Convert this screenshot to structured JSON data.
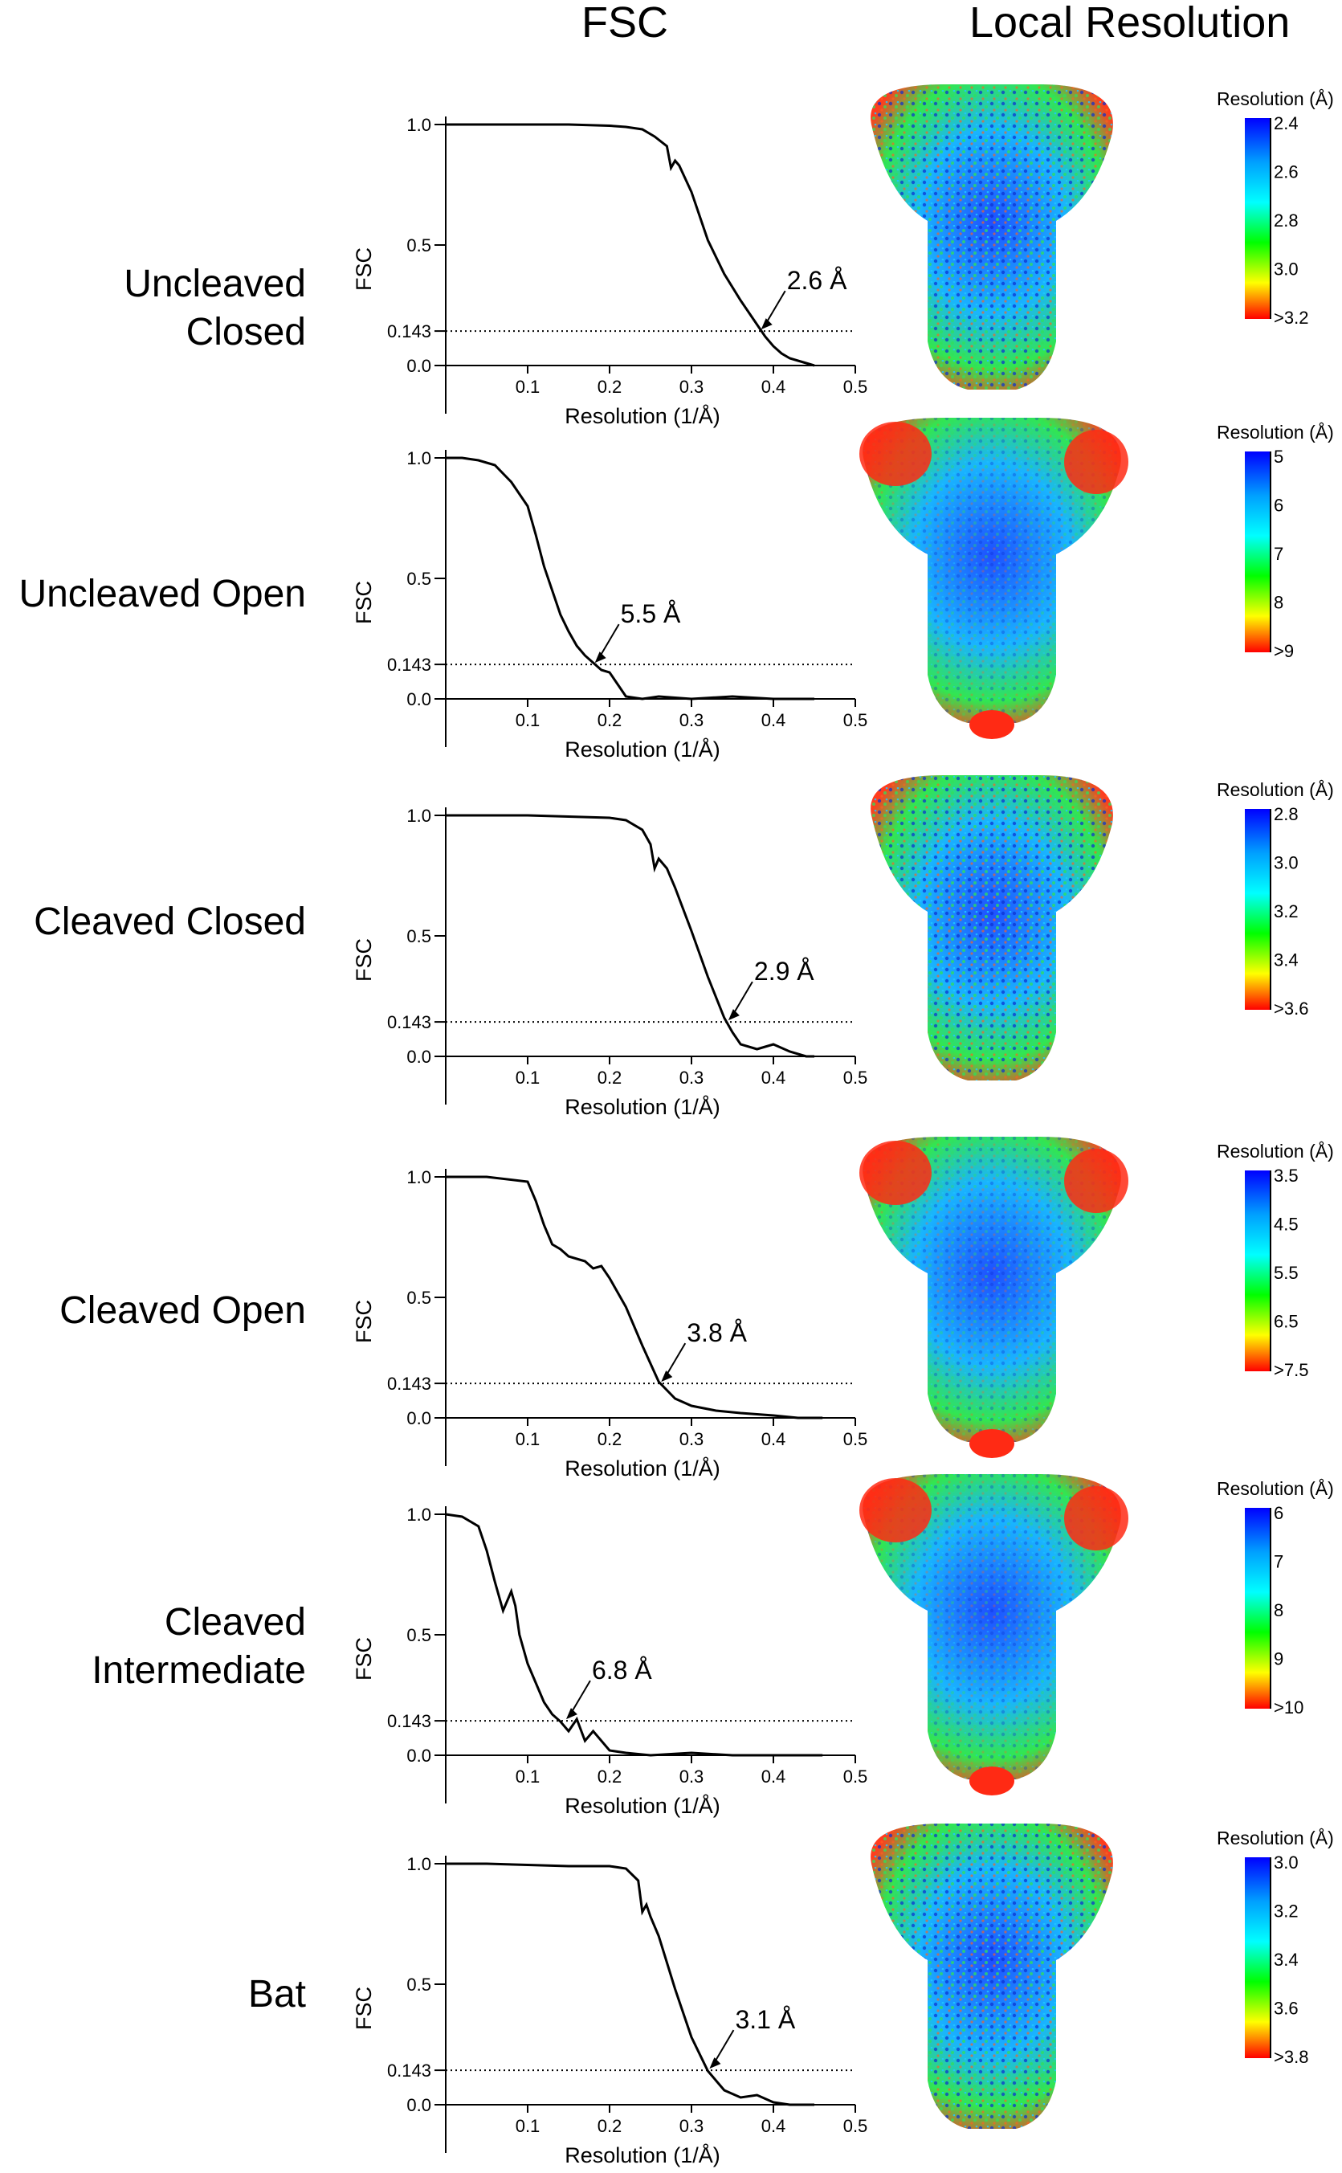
{
  "headers": {
    "fsc": "FSC",
    "local_resolution": "Local Resolution"
  },
  "colors": {
    "curve": "#000000",
    "scale": [
      "#0000ff",
      "#00a0ff",
      "#00ffff",
      "#00ff00",
      "#ffff00",
      "#ff0000"
    ]
  },
  "chart_data": [
    {
      "type": "line",
      "row_label": "Uncleaved Closed",
      "xlabel": "Resolution (1/Å)",
      "ylabel": "FSC",
      "xlim": [
        0,
        0.5
      ],
      "ylim": [
        0,
        1.0
      ],
      "xticks": [
        "0.1",
        "0.2",
        "0.3",
        "0.4",
        "0.5"
      ],
      "yticks": [
        "1.0",
        "0.5",
        "0.143",
        "0.0"
      ],
      "threshold": 0.143,
      "annotation": "2.6 Å",
      "annotation_x": 0.385,
      "series": [
        {
          "x": [
            0,
            0.05,
            0.1,
            0.15,
            0.2,
            0.22,
            0.24,
            0.255,
            0.27,
            0.275,
            0.28,
            0.285,
            0.3,
            0.32,
            0.34,
            0.36,
            0.38,
            0.39,
            0.4,
            0.41,
            0.42,
            0.43,
            0.44,
            0.45
          ],
          "y": [
            1.0,
            1.0,
            1.0,
            1.0,
            0.995,
            0.99,
            0.98,
            0.95,
            0.91,
            0.82,
            0.85,
            0.83,
            0.72,
            0.52,
            0.38,
            0.27,
            0.17,
            0.12,
            0.08,
            0.05,
            0.03,
            0.02,
            0.01,
            0.0
          ]
        }
      ],
      "color_scale": {
        "title": "Resolution (Å)",
        "ticks": [
          "2.4",
          "2.6",
          "2.8",
          "3.0",
          ">3.2"
        ]
      }
    },
    {
      "type": "line",
      "row_label": "Uncleaved Open",
      "xlabel": "Resolution (1/Å)",
      "ylabel": "FSC",
      "xlim": [
        0,
        0.5
      ],
      "ylim": [
        0,
        1.0
      ],
      "xticks": [
        "0.1",
        "0.2",
        "0.3",
        "0.4",
        "0.5"
      ],
      "yticks": [
        "1.0",
        "0.5",
        "0.143",
        "0.0"
      ],
      "threshold": 0.143,
      "annotation": "5.5 Å",
      "annotation_x": 0.182,
      "series": [
        {
          "x": [
            0,
            0.02,
            0.04,
            0.06,
            0.08,
            0.1,
            0.11,
            0.12,
            0.13,
            0.14,
            0.15,
            0.16,
            0.17,
            0.18,
            0.19,
            0.2,
            0.21,
            0.22,
            0.24,
            0.26,
            0.3,
            0.35,
            0.4,
            0.45
          ],
          "y": [
            1.0,
            1.0,
            0.99,
            0.97,
            0.9,
            0.8,
            0.68,
            0.55,
            0.45,
            0.35,
            0.28,
            0.22,
            0.18,
            0.15,
            0.12,
            0.11,
            0.06,
            0.01,
            0.0,
            0.01,
            0.0,
            0.01,
            0.0,
            0.0
          ]
        }
      ],
      "color_scale": {
        "title": "Resolution (Å)",
        "ticks": [
          "5",
          "6",
          "7",
          "8",
          ">9"
        ]
      }
    },
    {
      "type": "line",
      "row_label": "Cleaved Closed",
      "xlabel": "Resolution (1/Å)",
      "ylabel": "FSC",
      "xlim": [
        0,
        0.5
      ],
      "ylim": [
        0,
        1.0
      ],
      "xticks": [
        "0.1",
        "0.2",
        "0.3",
        "0.4",
        "0.5"
      ],
      "yticks": [
        "1.0",
        "0.5",
        "0.143",
        "0.0"
      ],
      "threshold": 0.143,
      "annotation": "2.9 Å",
      "annotation_x": 0.345,
      "series": [
        {
          "x": [
            0,
            0.05,
            0.1,
            0.15,
            0.2,
            0.22,
            0.24,
            0.25,
            0.255,
            0.26,
            0.27,
            0.28,
            0.3,
            0.32,
            0.34,
            0.35,
            0.36,
            0.38,
            0.4,
            0.42,
            0.44,
            0.45
          ],
          "y": [
            1.0,
            1.0,
            1.0,
            0.995,
            0.99,
            0.98,
            0.94,
            0.88,
            0.78,
            0.82,
            0.78,
            0.7,
            0.52,
            0.33,
            0.16,
            0.1,
            0.05,
            0.03,
            0.05,
            0.02,
            0.0,
            0.0
          ]
        }
      ],
      "color_scale": {
        "title": "Resolution (Å)",
        "ticks": [
          "2.8",
          "3.0",
          "3.2",
          "3.4",
          ">3.6"
        ]
      }
    },
    {
      "type": "line",
      "row_label": "Cleaved Open",
      "xlabel": "Resolution (1/Å)",
      "ylabel": "FSC",
      "xlim": [
        0,
        0.5
      ],
      "ylim": [
        0,
        1.0
      ],
      "xticks": [
        "0.1",
        "0.2",
        "0.3",
        "0.4",
        "0.5"
      ],
      "yticks": [
        "1.0",
        "0.5",
        "0.143",
        "0.0"
      ],
      "threshold": 0.143,
      "annotation": "3.8 Å",
      "annotation_x": 0.263,
      "series": [
        {
          "x": [
            0,
            0.05,
            0.1,
            0.11,
            0.12,
            0.13,
            0.14,
            0.15,
            0.17,
            0.18,
            0.19,
            0.2,
            0.22,
            0.24,
            0.26,
            0.28,
            0.3,
            0.33,
            0.36,
            0.4,
            0.43,
            0.46
          ],
          "y": [
            1.0,
            1.0,
            0.98,
            0.9,
            0.8,
            0.72,
            0.7,
            0.67,
            0.65,
            0.62,
            0.63,
            0.58,
            0.46,
            0.3,
            0.15,
            0.08,
            0.05,
            0.03,
            0.02,
            0.01,
            0.0,
            0.0
          ]
        }
      ],
      "color_scale": {
        "title": "Resolution (Å)",
        "ticks": [
          "3.5",
          "4.5",
          "5.5",
          "6.5",
          ">7.5"
        ]
      }
    },
    {
      "type": "line",
      "row_label": "Cleaved Intermediate",
      "xlabel": "Resolution (1/Å)",
      "ylabel": "FSC",
      "xlim": [
        0,
        0.5
      ],
      "ylim": [
        0,
        1.0
      ],
      "xticks": [
        "0.1",
        "0.2",
        "0.3",
        "0.4",
        "0.5"
      ],
      "yticks": [
        "1.0",
        "0.5",
        "0.143",
        "0.0"
      ],
      "threshold": 0.143,
      "annotation": "6.8 Å",
      "annotation_x": 0.147,
      "series": [
        {
          "x": [
            0,
            0.02,
            0.04,
            0.05,
            0.06,
            0.07,
            0.08,
            0.085,
            0.09,
            0.1,
            0.11,
            0.12,
            0.13,
            0.14,
            0.15,
            0.16,
            0.17,
            0.18,
            0.2,
            0.22,
            0.25,
            0.3,
            0.35,
            0.4,
            0.46
          ],
          "y": [
            1.0,
            0.99,
            0.95,
            0.85,
            0.72,
            0.6,
            0.68,
            0.62,
            0.5,
            0.38,
            0.3,
            0.22,
            0.17,
            0.14,
            0.1,
            0.15,
            0.06,
            0.1,
            0.02,
            0.01,
            0.0,
            0.01,
            0.0,
            0.0,
            0.0
          ]
        }
      ],
      "color_scale": {
        "title": "Resolution (Å)",
        "ticks": [
          "6",
          "7",
          "8",
          "9",
          ">10"
        ]
      }
    },
    {
      "type": "line",
      "row_label": "Bat",
      "xlabel": "Resolution (1/Å)",
      "ylabel": "FSC",
      "xlim": [
        0,
        0.5
      ],
      "ylim": [
        0,
        1.0
      ],
      "xticks": [
        "0.1",
        "0.2",
        "0.3",
        "0.4",
        "0.5"
      ],
      "yticks": [
        "1.0",
        "0.5",
        "0.143",
        "0.0"
      ],
      "threshold": 0.143,
      "annotation": "3.1 Å",
      "annotation_x": 0.322,
      "series": [
        {
          "x": [
            0,
            0.05,
            0.1,
            0.15,
            0.2,
            0.22,
            0.235,
            0.24,
            0.245,
            0.25,
            0.26,
            0.28,
            0.3,
            0.32,
            0.33,
            0.34,
            0.36,
            0.38,
            0.4,
            0.42,
            0.45
          ],
          "y": [
            1.0,
            1.0,
            0.995,
            0.99,
            0.99,
            0.98,
            0.93,
            0.8,
            0.83,
            0.78,
            0.7,
            0.48,
            0.28,
            0.14,
            0.1,
            0.06,
            0.03,
            0.04,
            0.01,
            0.0,
            0.0
          ]
        }
      ],
      "color_scale": {
        "title": "Resolution (Å)",
        "ticks": [
          "3.0",
          "3.2",
          "3.4",
          "3.6",
          ">3.8"
        ]
      }
    }
  ]
}
